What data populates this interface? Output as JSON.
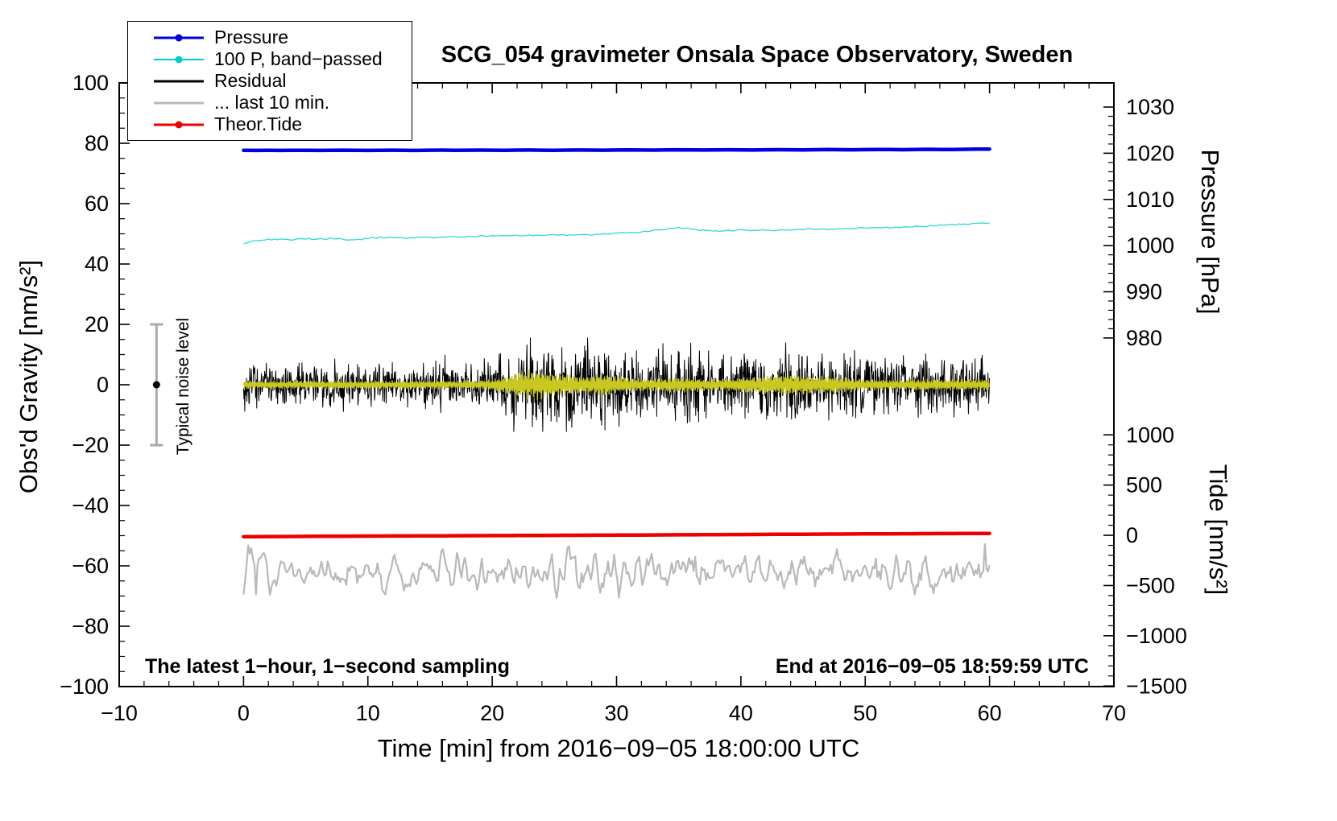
{
  "annotations": {
    "sampling": "The latest 1−hour, 1−second sampling",
    "end_time": "End at 2016−09−05 18:59:59 UTC",
    "noise_level": "Typical noise level"
  },
  "legend": [
    {
      "label": "Pressure",
      "color": "#0000dd",
      "marker": "dot-line",
      "width": 3
    },
    {
      "label": "100 P, band−passed",
      "color": "#00cccc",
      "marker": "dot-line",
      "width": 2
    },
    {
      "label": "Residual",
      "color": "#000000",
      "marker": "line",
      "width": 3
    },
    {
      "label": "... last 10 min.",
      "color": "#b9b9b9",
      "marker": "line",
      "width": 3
    },
    {
      "label": "Theor.Tide",
      "color": "#ee0000",
      "marker": "dot-line",
      "width": 3
    }
  ],
  "chart_data": {
    "type": "line",
    "title": "SCG_054 gravimeter Onsala Space Observatory, Sweden",
    "x": {
      "label": "Time [min] from 2016−09−05 18:00:00 UTC",
      "range": [
        -10,
        70
      ],
      "ticks": [
        -10,
        0,
        10,
        20,
        30,
        40,
        50,
        60,
        70
      ],
      "minor_step": 2
    },
    "y_left": {
      "label": "Obs'd Gravity [nm/s²]",
      "range": [
        -100,
        100
      ],
      "ticks": [
        -100,
        -80,
        -60,
        -40,
        -20,
        0,
        20,
        40,
        60,
        80,
        100
      ],
      "minor_step": 5
    },
    "y_pressure": {
      "label": "Pressure [hPa]",
      "ticks": [
        1030,
        1020,
        1010,
        1000,
        990,
        980
      ],
      "minor_step": 2,
      "anchors": {
        "p": [
          1030,
          980
        ],
        "g": [
          92,
          15.5
        ]
      }
    },
    "y_tide": {
      "label": "Tide [nm/s²]",
      "ticks": [
        1000,
        500,
        0,
        -500,
        -1000,
        -1500
      ],
      "minor_step": 100,
      "anchors": {
        "t": [
          1000,
          -1500
        ],
        "g": [
          -16.6,
          -99.8
        ]
      }
    },
    "noise_bar": {
      "time_min": -7,
      "gravity_center": 0,
      "gravity_half_range": 20
    },
    "series": [
      {
        "id": "pressure",
        "axis": "pressure",
        "color": "#0000e0",
        "width": 4.5,
        "x_minutes_range": [
          0,
          60
        ],
        "values_hpa": [
          1020.62,
          1020.6,
          1020.63,
          1020.61,
          1020.64,
          1020.62,
          1020.6,
          1020.63,
          1020.65,
          1020.62,
          1020.6,
          1020.64,
          1020.66,
          1020.63,
          1020.61,
          1020.65,
          1020.67,
          1020.64,
          1020.66,
          1020.68,
          1020.65,
          1020.63,
          1020.67,
          1020.69,
          1020.66,
          1020.64,
          1020.68,
          1020.7,
          1020.67,
          1020.65,
          1020.7,
          1020.72,
          1020.69,
          1020.67,
          1020.71,
          1020.74,
          1020.71,
          1020.69,
          1020.73,
          1020.75,
          1020.72,
          1020.7,
          1020.74,
          1020.77,
          1020.74,
          1020.72,
          1020.76,
          1020.79,
          1020.76,
          1020.74,
          1020.78,
          1020.82,
          1020.79,
          1020.77,
          1020.81,
          1020.85,
          1020.82,
          1020.8,
          1020.85,
          1020.88,
          1020.9
        ]
      },
      {
        "id": "pressure_bandpassed",
        "axis": "gravity",
        "color": "#2fd8d8",
        "width": 1.3,
        "x_minutes_range": [
          0,
          60
        ],
        "jitter": 0.45,
        "seed": 311,
        "values": [
          46.6,
          47.9,
          48.1,
          48.3,
          48.1,
          48.4,
          48.2,
          48.5,
          48.2,
          47.9,
          48.5,
          48.7,
          48.8,
          48.6,
          48.9,
          48.8,
          49.0,
          49.1,
          49.0,
          49.2,
          49.3,
          49.5,
          49.4,
          49.6,
          49.5,
          49.7,
          49.6,
          49.8,
          49.7,
          49.9,
          50.1,
          50.4,
          50.7,
          51.1,
          51.6,
          52.0,
          51.6,
          51.1,
          50.9,
          51.1,
          51.3,
          51.1,
          51.3,
          51.2,
          51.4,
          51.5,
          51.6,
          51.5,
          51.7,
          51.8,
          52.0,
          52.1,
          52.0,
          52.2,
          52.4,
          52.6,
          52.8,
          53.0,
          53.2,
          53.4,
          53.4
        ]
      },
      {
        "id": "residual",
        "axis": "gravity",
        "color": "#000000",
        "width": 1,
        "x_minutes_range": [
          0,
          60
        ],
        "mean": 0,
        "seed": 905,
        "samples_per_min": 30,
        "clip": 15.5,
        "std_envelope_per_min": [
          3.4,
          3.4,
          3.5,
          3.3,
          3.4,
          3.5,
          3.4,
          3.3,
          3.5,
          3.4,
          3.4,
          3.5,
          3.4,
          3.5,
          3.4,
          3.3,
          3.5,
          3.4,
          3.5,
          3.5,
          3.8,
          4.6,
          6.0,
          6.6,
          7.2,
          7.6,
          7.0,
          6.2,
          6.6,
          6.6,
          6.0,
          5.2,
          4.6,
          4.6,
          5.0,
          5.6,
          5.4,
          5.0,
          4.8,
          5.0,
          5.2,
          5.6,
          5.4,
          5.6,
          5.8,
          5.6,
          5.0,
          5.2,
          5.0,
          4.8,
          4.6,
          4.4,
          4.2,
          4.1,
          4.2,
          4.3,
          4.2,
          4.3,
          4.4,
          4.5,
          4.4
        ]
      },
      {
        "id": "residual_bandpassed",
        "axis": "gravity",
        "color": "#c8c820",
        "width": 1.4,
        "x_minutes_range": [
          0,
          60
        ],
        "mean": 0,
        "seed": 1859,
        "samples_per_min": 25,
        "amp_envelope_per_min": [
          1.2,
          1.2,
          1.3,
          1.2,
          1.2,
          1.3,
          1.2,
          1.2,
          1.3,
          1.2,
          1.2,
          1.3,
          1.2,
          1.3,
          1.2,
          1.2,
          1.3,
          1.2,
          1.3,
          1.4,
          1.7,
          2.6,
          4.0,
          4.6,
          4.6,
          4.0,
          3.4,
          2.6,
          3.0,
          3.6,
          3.0,
          2.2,
          1.9,
          1.9,
          2.1,
          2.6,
          2.3,
          1.9,
          1.9,
          2.1,
          2.3,
          2.6,
          2.9,
          3.1,
          3.3,
          3.0,
          2.5,
          2.8,
          2.5,
          2.1,
          1.8,
          1.7,
          1.6,
          1.6,
          1.7,
          1.8,
          1.7,
          1.7,
          1.8,
          1.7,
          1.6
        ]
      },
      {
        "id": "last10",
        "axis": "gravity",
        "color": "#b9b9b9",
        "width": 2.2,
        "x_minutes_range": [
          0,
          60
        ],
        "mean": -62,
        "std": 3.4,
        "points": 480,
        "seed": 2016,
        "clip": [
          -71,
          -52
        ]
      },
      {
        "id": "theor_tide",
        "axis": "tide",
        "color": "#ee0000",
        "width": 4.5,
        "x_minutes_step": 10,
        "values_tide": [
          -14,
          -8,
          -3,
          2,
          8,
          14,
          19
        ]
      }
    ]
  }
}
